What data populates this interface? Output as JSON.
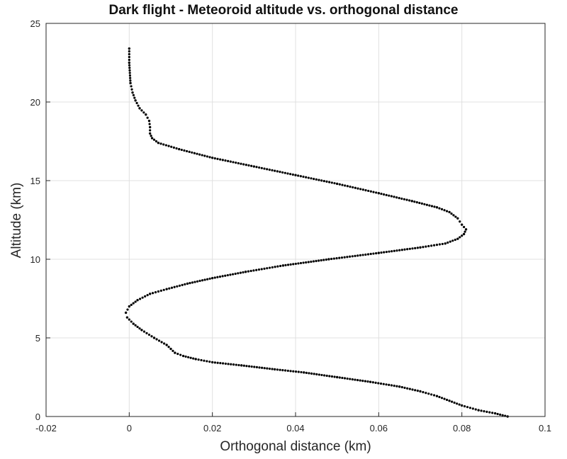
{
  "chart_data": {
    "type": "scatter",
    "title": "Dark flight - Meteoroid altitude vs. orthogonal distance",
    "xlabel": "Orthogonal distance (km)",
    "ylabel": "Altitude (km)",
    "xlim": [
      -0.02,
      0.1
    ],
    "ylim": [
      0,
      25
    ],
    "xticks": [
      "-0.02",
      "0",
      "0.02",
      "0.04",
      "0.06",
      "0.08",
      "0.1"
    ],
    "yticks": [
      "0",
      "5",
      "10",
      "15",
      "20",
      "25"
    ],
    "grid": true,
    "marker_color": "#000000",
    "series": [
      {
        "x": [
          0.091,
          0.088,
          0.084,
          0.08,
          0.077,
          0.074,
          0.07,
          0.065,
          0.058,
          0.05,
          0.042,
          0.035,
          0.027,
          0.02,
          0.016,
          0.013,
          0.011,
          0.01,
          0.009,
          0.006,
          0.003,
          0.001,
          -0.0005,
          -0.0008,
          0.0,
          0.002,
          0.005,
          0.009,
          0.014,
          0.02,
          0.028,
          0.037,
          0.048,
          0.06,
          0.07,
          0.076,
          0.079,
          0.0805,
          0.081,
          0.08,
          0.079,
          0.077,
          0.074,
          0.068,
          0.06,
          0.05,
          0.04,
          0.03,
          0.02,
          0.012,
          0.007,
          0.0055,
          0.005,
          0.005,
          0.0048,
          0.004,
          0.0025,
          0.0015,
          0.0008,
          0.0003,
          0.0,
          0.0
        ],
        "y": [
          0.0,
          0.2,
          0.4,
          0.7,
          1.0,
          1.3,
          1.6,
          1.9,
          2.2,
          2.5,
          2.8,
          3.0,
          3.25,
          3.45,
          3.65,
          3.85,
          4.05,
          4.3,
          4.55,
          5.0,
          5.5,
          5.9,
          6.3,
          6.6,
          7.0,
          7.4,
          7.8,
          8.1,
          8.45,
          8.8,
          9.2,
          9.6,
          10.0,
          10.4,
          10.75,
          11.0,
          11.3,
          11.6,
          11.9,
          12.2,
          12.6,
          13.0,
          13.3,
          13.7,
          14.2,
          14.8,
          15.35,
          15.9,
          16.45,
          17.0,
          17.4,
          17.7,
          18.0,
          18.4,
          18.8,
          19.2,
          19.6,
          20.1,
          20.6,
          21.2,
          22.5,
          23.4
        ]
      }
    ]
  }
}
